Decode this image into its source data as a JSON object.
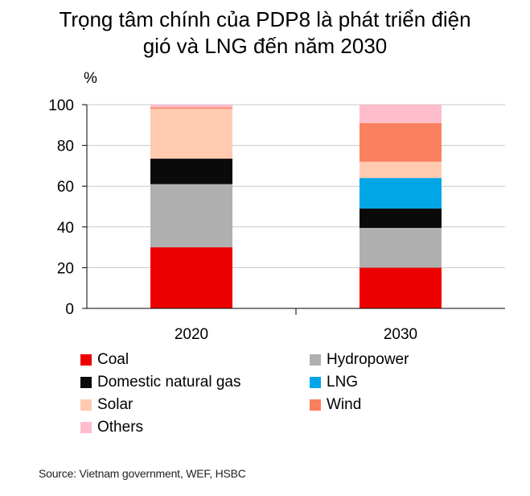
{
  "chart_data": {
    "type": "bar",
    "stacked": true,
    "title": "Trọng tâm chính của PDP8 là phát triển điện gió và LNG đến năm 2030",
    "title_lines": [
      "Trọng tâm chính của PDP8 là phát triển điện",
      "gió và LNG đến năm 2030"
    ],
    "ylabel": "%",
    "ylim": [
      0,
      100
    ],
    "yticks": [
      0,
      20,
      40,
      60,
      80,
      100
    ],
    "grid": true,
    "categories": [
      "2020",
      "2030"
    ],
    "series": [
      {
        "name": "Coal",
        "color": "#ee0000",
        "values": [
          30,
          20
        ]
      },
      {
        "name": "Hydropower",
        "color": "#b0b0b0",
        "values": [
          31,
          19.5
        ]
      },
      {
        "name": "Domestic natural gas",
        "color": "#0a0a0a",
        "values": [
          12.5,
          9.5
        ]
      },
      {
        "name": "LNG",
        "color": "#00a6e6",
        "values": [
          0,
          15
        ]
      },
      {
        "name": "Solar",
        "color": "#ffcab0",
        "values": [
          24.5,
          8
        ]
      },
      {
        "name": "Wind",
        "color": "#fa8060",
        "values": [
          0.6,
          19
        ]
      },
      {
        "name": "Others",
        "color": "#ffbccb",
        "values": [
          1.4,
          9
        ]
      }
    ],
    "legend_order": [
      "Coal",
      "Hydropower",
      "Domestic natural gas",
      "LNG",
      "Solar",
      "Wind",
      "Others"
    ],
    "legend_placement": "bottom",
    "source": "Source: Vietnam government, WEF, HSBC"
  }
}
